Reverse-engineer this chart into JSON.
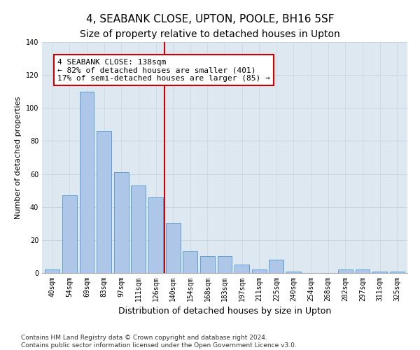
{
  "title": "4, SEABANK CLOSE, UPTON, POOLE, BH16 5SF",
  "subtitle": "Size of property relative to detached houses in Upton",
  "xlabel": "Distribution of detached houses by size in Upton",
  "ylabel": "Number of detached properties",
  "categories": [
    "40sqm",
    "54sqm",
    "69sqm",
    "83sqm",
    "97sqm",
    "111sqm",
    "126sqm",
    "140sqm",
    "154sqm",
    "168sqm",
    "183sqm",
    "197sqm",
    "211sqm",
    "225sqm",
    "240sqm",
    "254sqm",
    "268sqm",
    "282sqm",
    "297sqm",
    "311sqm",
    "325sqm"
  ],
  "values": [
    2,
    47,
    110,
    86,
    61,
    53,
    46,
    30,
    13,
    10,
    10,
    5,
    2,
    8,
    1,
    0,
    0,
    2,
    2,
    1,
    1
  ],
  "bar_color": "#aec6e8",
  "bar_edgecolor": "#5a9fd4",
  "highlight_line_index": 7,
  "highlight_line_color": "#cc0000",
  "annotation_line1": "4 SEABANK CLOSE: 138sqm",
  "annotation_line2": "← 82% of detached houses are smaller (401)",
  "annotation_line3": "17% of semi-detached houses are larger (85) →",
  "annotation_box_color": "#cc0000",
  "ylim": [
    0,
    140
  ],
  "yticks": [
    0,
    20,
    40,
    60,
    80,
    100,
    120,
    140
  ],
  "grid_color": "#c8d4e0",
  "background_color": "#dde8f0",
  "footer_line1": "Contains HM Land Registry data © Crown copyright and database right 2024.",
  "footer_line2": "Contains public sector information licensed under the Open Government Licence v3.0.",
  "title_fontsize": 11,
  "subtitle_fontsize": 10,
  "annotation_fontsize": 8,
  "tick_fontsize": 7,
  "xlabel_fontsize": 9,
  "ylabel_fontsize": 8,
  "footer_fontsize": 6.5
}
